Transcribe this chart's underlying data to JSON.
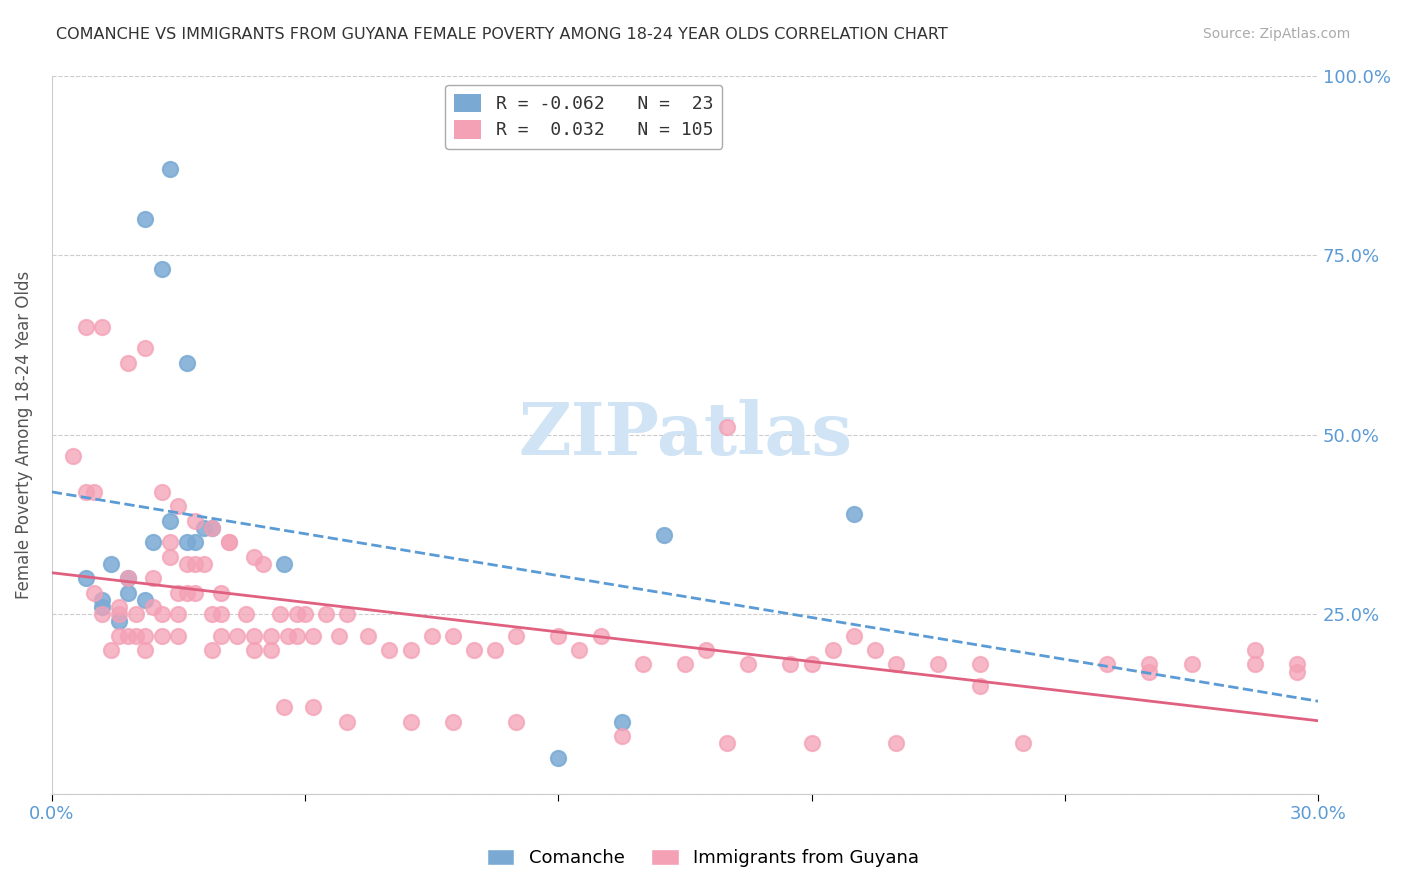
{
  "title": "COMANCHE VS IMMIGRANTS FROM GUYANA FEMALE POVERTY AMONG 18-24 YEAR OLDS CORRELATION CHART",
  "source": "Source: ZipAtlas.com",
  "ylabel": "Female Poverty Among 18-24 Year Olds",
  "xlabel": "",
  "xlim": [
    0.0,
    0.3
  ],
  "ylim": [
    0.0,
    1.0
  ],
  "yticks": [
    0.0,
    0.25,
    0.5,
    0.75,
    1.0
  ],
  "ytick_labels": [
    "",
    "25.0%",
    "50.0%",
    "75.0%",
    "100.0%"
  ],
  "xticks": [
    0.0,
    0.06,
    0.12,
    0.18,
    0.24,
    0.3
  ],
  "xtick_labels": [
    "0.0%",
    "",
    "",
    "",
    "",
    "30.0%"
  ],
  "title_color": "#333333",
  "source_color": "#aaaaaa",
  "axis_color": "#5b9bd5",
  "ylabel_color": "#555555",
  "grid_color": "#cccccc",
  "background_color": "#ffffff",
  "watermark_text": "ZIPatlas",
  "watermark_color": "#d0e4f5",
  "legend_R1": "-0.062",
  "legend_N1": "23",
  "legend_R2": "0.032",
  "legend_N2": "105",
  "series1_color": "#7aaad4",
  "series2_color": "#f4a0b5",
  "series1_label": "Comanche",
  "series2_label": "Immigrants from Guyana",
  "series1_line_color": "#5b9bd5",
  "series2_line_color": "#e06080",
  "comanche_x": [
    0.012,
    0.022,
    0.028,
    0.026,
    0.032,
    0.028,
    0.034,
    0.036,
    0.038,
    0.008,
    0.014,
    0.018,
    0.018,
    0.022,
    0.024,
    0.012,
    0.016,
    0.032,
    0.145,
    0.19,
    0.12,
    0.135,
    0.055
  ],
  "comanche_y": [
    0.27,
    0.8,
    0.87,
    0.73,
    0.6,
    0.38,
    0.35,
    0.37,
    0.37,
    0.3,
    0.32,
    0.3,
    0.28,
    0.27,
    0.35,
    0.26,
    0.24,
    0.35,
    0.36,
    0.39,
    0.05,
    0.1,
    0.32
  ],
  "guyana_x": [
    0.005,
    0.008,
    0.01,
    0.01,
    0.012,
    0.014,
    0.016,
    0.016,
    0.016,
    0.018,
    0.018,
    0.02,
    0.02,
    0.022,
    0.022,
    0.024,
    0.024,
    0.026,
    0.026,
    0.028,
    0.028,
    0.03,
    0.03,
    0.03,
    0.032,
    0.032,
    0.034,
    0.034,
    0.036,
    0.038,
    0.038,
    0.04,
    0.04,
    0.04,
    0.042,
    0.044,
    0.046,
    0.048,
    0.048,
    0.05,
    0.052,
    0.052,
    0.054,
    0.056,
    0.058,
    0.058,
    0.06,
    0.062,
    0.065,
    0.068,
    0.07,
    0.075,
    0.08,
    0.085,
    0.09,
    0.095,
    0.1,
    0.105,
    0.11,
    0.12,
    0.125,
    0.13,
    0.14,
    0.15,
    0.155,
    0.165,
    0.175,
    0.18,
    0.185,
    0.19,
    0.195,
    0.2,
    0.21,
    0.22,
    0.25,
    0.26,
    0.27,
    0.285,
    0.295,
    0.008,
    0.012,
    0.018,
    0.022,
    0.026,
    0.03,
    0.034,
    0.038,
    0.042,
    0.048,
    0.055,
    0.062,
    0.07,
    0.085,
    0.095,
    0.11,
    0.135,
    0.16,
    0.18,
    0.2,
    0.23,
    0.26,
    0.285,
    0.295,
    0.16,
    0.22
  ],
  "guyana_y": [
    0.47,
    0.42,
    0.42,
    0.28,
    0.25,
    0.2,
    0.25,
    0.22,
    0.26,
    0.22,
    0.3,
    0.22,
    0.25,
    0.22,
    0.2,
    0.26,
    0.3,
    0.25,
    0.22,
    0.33,
    0.35,
    0.25,
    0.28,
    0.22,
    0.32,
    0.28,
    0.32,
    0.28,
    0.32,
    0.25,
    0.2,
    0.25,
    0.22,
    0.28,
    0.35,
    0.22,
    0.25,
    0.22,
    0.2,
    0.32,
    0.22,
    0.2,
    0.25,
    0.22,
    0.25,
    0.22,
    0.25,
    0.22,
    0.25,
    0.22,
    0.25,
    0.22,
    0.2,
    0.2,
    0.22,
    0.22,
    0.2,
    0.2,
    0.22,
    0.22,
    0.2,
    0.22,
    0.18,
    0.18,
    0.2,
    0.18,
    0.18,
    0.18,
    0.2,
    0.22,
    0.2,
    0.18,
    0.18,
    0.18,
    0.18,
    0.18,
    0.18,
    0.2,
    0.17,
    0.65,
    0.65,
    0.6,
    0.62,
    0.42,
    0.4,
    0.38,
    0.37,
    0.35,
    0.33,
    0.12,
    0.12,
    0.1,
    0.1,
    0.1,
    0.1,
    0.08,
    0.07,
    0.07,
    0.07,
    0.07,
    0.17,
    0.18,
    0.18,
    0.51,
    0.15
  ]
}
